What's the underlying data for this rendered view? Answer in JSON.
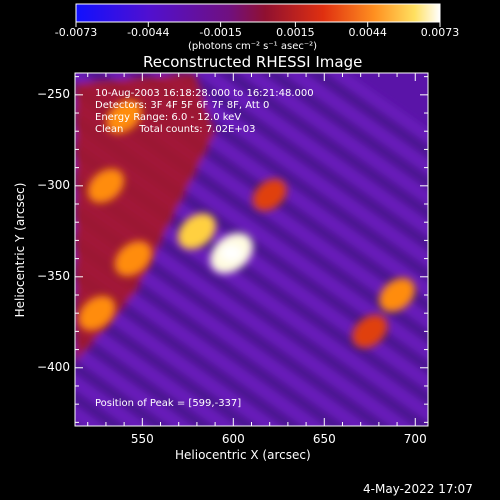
{
  "colorbar": {
    "ticks": [
      "-0.0073",
      "-0.0044",
      "-0.0015",
      "0.0015",
      "0.0044",
      "0.0073"
    ],
    "tick_values": [
      -0.0073,
      -0.0044,
      -0.0015,
      0.0015,
      0.0044,
      0.0073
    ],
    "range": [
      -0.0073,
      0.0073
    ],
    "unit_label": "(photons cm⁻² s⁻¹ asec⁻²)",
    "colors": [
      "#1010ff",
      "#6010c0",
      "#701080",
      "#c02020",
      "#ff7000",
      "#ffd040",
      "#ffffff"
    ]
  },
  "chart_data": {
    "type": "heatmap",
    "title": "Reconstructed RHESSI Image",
    "xlabel": "Heliocentric X (arcsec)",
    "ylabel": "Heliocentric Y (arcsec)",
    "xlim": [
      513,
      707
    ],
    "ylim": [
      -432,
      -238
    ],
    "xticks": [
      550,
      600,
      650,
      700
    ],
    "xtick_labels": [
      "550",
      "600",
      "650",
      "700"
    ],
    "yticks": [
      -250,
      -300,
      -350,
      -400
    ],
    "ytick_labels": [
      "−250",
      "−300",
      "−350",
      "−400"
    ],
    "grid": false,
    "annotations": [
      "10-Aug-2003 16:18:28.000 to 16:21:48.000",
      "Detectors: 3F 4F 5F 6F 7F 8F, Att 0",
      "Energy Range: 6.0 - 12.0 keV",
      "Clean     Total counts: 7.02E+03"
    ],
    "peak_label": "Position of Peak = [599,-337]",
    "peak": [
      599,
      -337
    ],
    "bright_sources": [
      {
        "x": 599,
        "y": -337,
        "value": 0.0073
      },
      {
        "x": 580,
        "y": -325,
        "value": 0.0045
      },
      {
        "x": 530,
        "y": -300,
        "value": 0.0035
      },
      {
        "x": 545,
        "y": -340,
        "value": 0.004
      },
      {
        "x": 525,
        "y": -370,
        "value": 0.0038
      },
      {
        "x": 540,
        "y": -262,
        "value": 0.003
      },
      {
        "x": 690,
        "y": -360,
        "value": 0.0032
      },
      {
        "x": 675,
        "y": -380,
        "value": 0.0028
      },
      {
        "x": 620,
        "y": -305,
        "value": 0.002
      }
    ]
  },
  "footer": {
    "timestamp": "4-May-2022 17:07"
  }
}
